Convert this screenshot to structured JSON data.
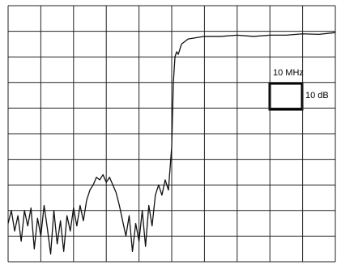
{
  "chart_data": {
    "type": "line",
    "x": [
      0,
      1,
      2,
      3,
      4,
      5,
      6,
      7,
      8,
      9,
      10,
      11,
      12,
      13,
      14,
      15,
      16,
      17,
      18,
      19,
      20,
      21,
      22,
      23,
      24,
      25,
      26,
      27,
      28,
      29,
      30,
      31,
      32,
      33,
      34,
      35,
      36,
      37,
      38,
      39,
      40,
      41,
      42,
      43,
      44,
      45,
      46,
      47,
      48,
      49,
      50,
      50.5,
      51,
      51.5,
      52,
      53,
      55,
      60,
      65,
      70,
      75,
      80,
      85,
      90,
      95,
      100
    ],
    "series": [
      {
        "color": "#111111",
        "values": [
          -85,
          -80,
          -88,
          -82,
          -92,
          -80,
          -86,
          -79,
          -95,
          -83,
          -90,
          -78,
          -87,
          -97,
          -80,
          -93,
          -84,
          -96,
          -82,
          -88,
          -79,
          -86,
          -78,
          -84,
          -76,
          -72,
          -70,
          -67,
          -68,
          -66,
          -69,
          -67,
          -70,
          -73,
          -78,
          -84,
          -90,
          -82,
          -96,
          -85,
          -92,
          -80,
          -94,
          -78,
          -86,
          -74,
          -70,
          -74,
          -68,
          -72,
          -55,
          -30,
          -20,
          -18,
          -19,
          -15,
          -13,
          -12,
          -12,
          -11.5,
          -12,
          -11.5,
          -11.5,
          -11,
          -11.2,
          -10.5
        ]
      }
    ],
    "xlim": [
      0,
      100
    ],
    "ylim": [
      -100,
      0
    ],
    "xticks": [
      0,
      10,
      20,
      30,
      40,
      50,
      60,
      70,
      80,
      90,
      100
    ],
    "yticks": [
      -100,
      -90,
      -80,
      -70,
      -60,
      -50,
      -40,
      -30,
      -20,
      -10,
      0
    ],
    "grid": true,
    "annotations": [
      "10 MHz",
      "10 dB"
    ]
  }
}
